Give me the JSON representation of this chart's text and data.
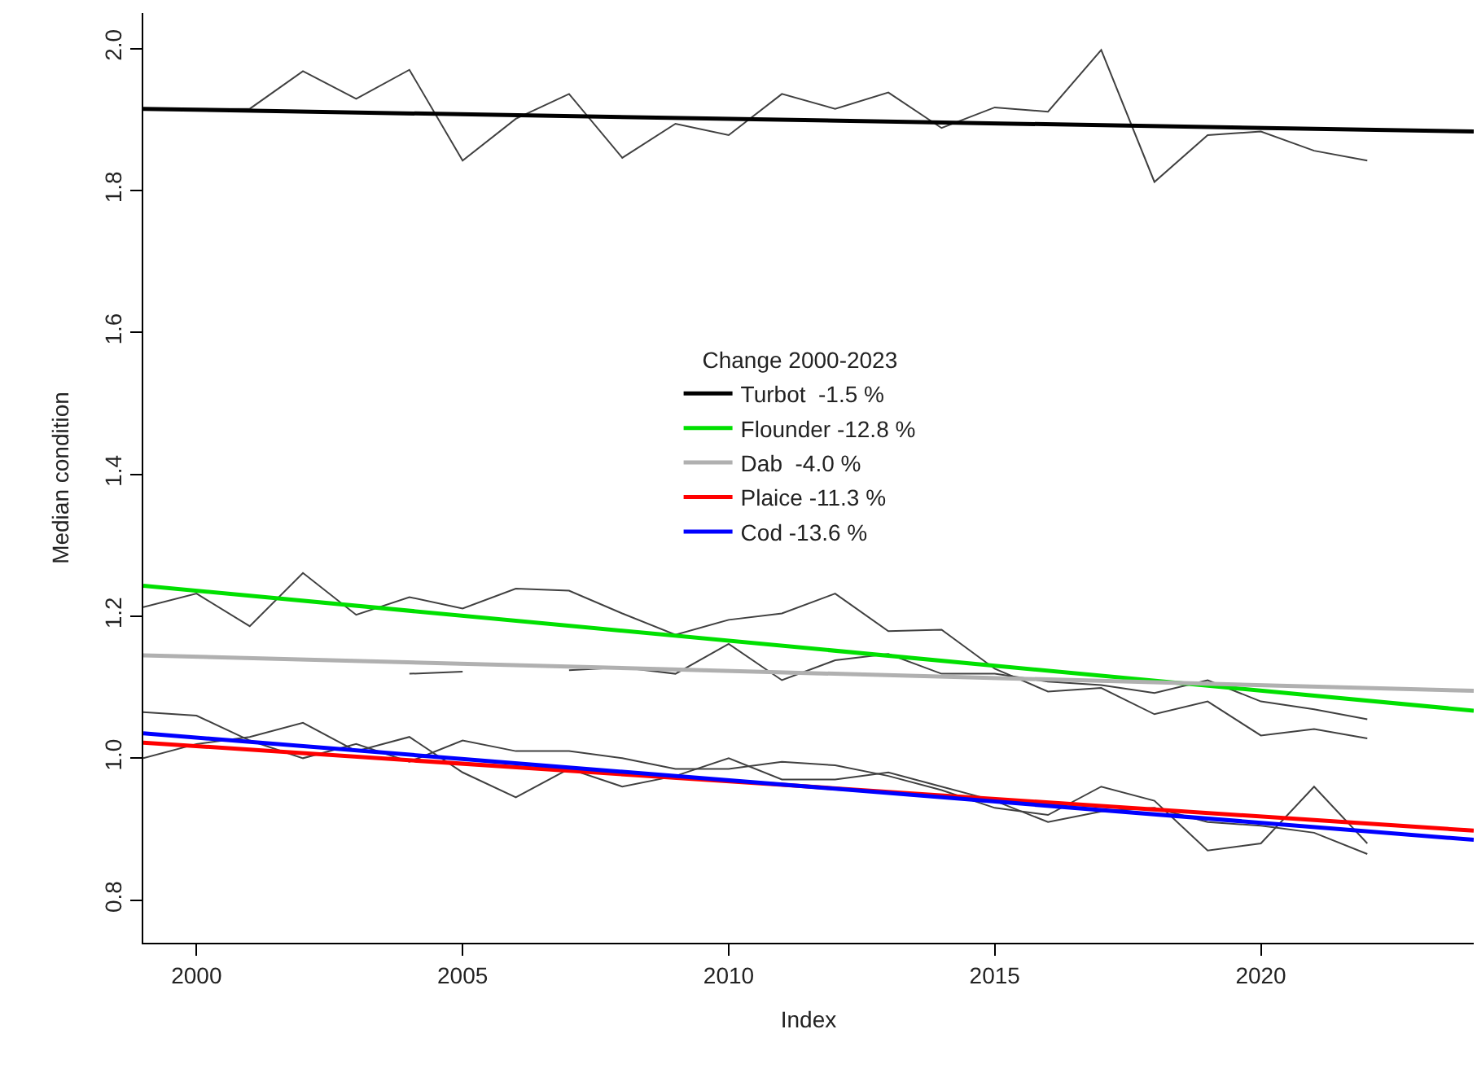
{
  "chart_data": {
    "type": "line",
    "xlabel": "Index",
    "ylabel": "Median condition",
    "legend_title": "Change 2000-2023",
    "legend": "center",
    "xlim": [
      1999,
      2024
    ],
    "ylim": [
      0.74,
      2.05
    ],
    "xticks": [
      2000,
      2005,
      2010,
      2015,
      2020
    ],
    "yticks": [
      0.8,
      {
        "value": 1.0,
        "label": "1.0"
      },
      1.2,
      1.4,
      1.6,
      1.8,
      {
        "value": 2.0,
        "label": "2.0"
      }
    ],
    "marker": "none",
    "line_style": "solid",
    "series": [
      {
        "color": "#404040",
        "x": [
          1999,
          2000,
          2001,
          2002,
          2003,
          2004,
          2005,
          2006,
          2007,
          2008,
          2009,
          2010,
          2011,
          2012,
          2013,
          2014,
          2015,
          2016,
          2017,
          2018,
          2019,
          2020,
          2021,
          2022
        ],
        "values": [
          1.915,
          1.915,
          1.915,
          1.968,
          1.929,
          1.97,
          1.842,
          1.901,
          1.936,
          1.846,
          1.894,
          1.878,
          1.936,
          1.915,
          1.938,
          1.888,
          1.917,
          1.911,
          1.998,
          1.812,
          1.878,
          1.883,
          1.856,
          1.842
        ]
      },
      {
        "color": "#404040",
        "x": [
          1999,
          2000,
          2001,
          2002,
          2003,
          2004,
          2005,
          2006,
          2007,
          2008,
          2009,
          2010,
          2011,
          2012,
          2013,
          2014,
          2015,
          2016,
          2017,
          2018,
          2019,
          2020,
          2021,
          2022
        ],
        "values": [
          1.213,
          1.232,
          1.186,
          1.261,
          1.202,
          1.227,
          1.211,
          1.239,
          1.236,
          1.204,
          1.174,
          1.195,
          1.204,
          1.232,
          1.179,
          1.181,
          1.126,
          1.094,
          1.099,
          1.062,
          1.08,
          1.032,
          1.041,
          1.028
        ]
      },
      {
        "color": "#404040",
        "x": [
          2004,
          2005,
          2006,
          2007,
          2008,
          2009,
          2010,
          2011,
          2012,
          2013,
          2014,
          2015,
          2016,
          2017,
          2018,
          2019,
          2020,
          2021,
          2022
        ],
        "values": [
          1.119,
          1.122,
          null,
          1.124,
          1.128,
          1.119,
          1.161,
          1.11,
          1.138,
          1.147,
          1.119,
          1.119,
          1.108,
          1.103,
          1.092,
          1.11,
          1.08,
          1.069,
          1.055
        ]
      },
      {
        "color": "#404040",
        "x": [
          1999,
          2000,
          2001,
          2002,
          2003,
          2004,
          2005,
          2006,
          2007,
          2008,
          2009,
          2010,
          2011,
          2012,
          2013,
          2014,
          2015,
          2016,
          2017,
          2018,
          2019,
          2020,
          2021,
          2022
        ],
        "values": [
          1.065,
          1.06,
          1.025,
          1.0,
          1.02,
          0.995,
          1.025,
          1.01,
          1.01,
          1.0,
          0.985,
          0.985,
          0.995,
          0.99,
          0.975,
          0.955,
          0.93,
          0.92,
          0.96,
          0.94,
          0.87,
          0.88,
          0.96,
          0.88
        ]
      },
      {
        "color": "#404040",
        "x": [
          1999,
          2000,
          2001,
          2002,
          2003,
          2004,
          2005,
          2006,
          2007,
          2008,
          2009,
          2010,
          2011,
          2012,
          2013,
          2014,
          2015,
          2016,
          2017,
          2018,
          2019,
          2020,
          2021,
          2022
        ],
        "values": [
          1.0,
          1.02,
          1.03,
          1.05,
          1.01,
          1.03,
          0.98,
          0.945,
          0.985,
          0.96,
          0.975,
          1.0,
          0.97,
          0.97,
          0.98,
          0.96,
          0.94,
          0.91,
          0.925,
          0.93,
          0.91,
          0.905,
          0.895,
          0.865
        ]
      },
      {
        "name": "Turbot  -1.5 %",
        "color": "#000000",
        "x": [
          1999,
          2024
        ],
        "values": [
          1.915,
          1.883
        ]
      },
      {
        "name": "Flounder -12.8 %",
        "color": "#00e000",
        "x": [
          1999,
          2024
        ],
        "values": [
          1.243,
          1.067
        ]
      },
      {
        "name": "Dab  -4.0 %",
        "color": "#b0b0b0",
        "x": [
          1999,
          2024
        ],
        "values": [
          1.145,
          1.095
        ]
      },
      {
        "name": "Plaice -11.3 %",
        "color": "#ff0000",
        "x": [
          1999,
          2024
        ],
        "values": [
          1.022,
          0.898
        ]
      },
      {
        "name": "Cod -13.6 %",
        "color": "#0000ff",
        "x": [
          1999,
          2024
        ],
        "values": [
          1.035,
          0.885
        ]
      }
    ]
  }
}
